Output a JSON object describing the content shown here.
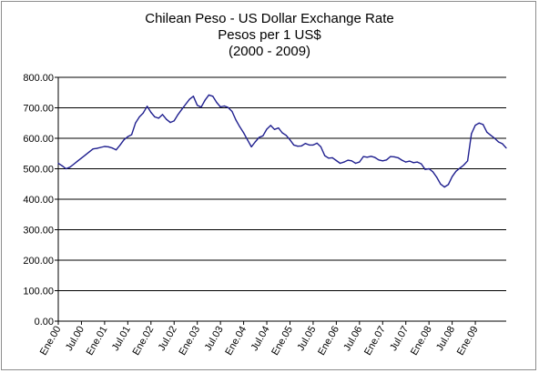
{
  "chart_data": {
    "type": "line",
    "title_lines": [
      "Chilean Peso - US Dollar Exchange Rate",
      "Pesos per 1  US$",
      "(2000 - 2009)"
    ],
    "ylim": [
      0,
      800
    ],
    "y_ticks": [
      "0.00",
      "100.00",
      "200.00",
      "300.00",
      "400.00",
      "500.00",
      "600.00",
      "700.00",
      "800.00"
    ],
    "x_tick_labels": [
      "Ene.00",
      "Jul.00",
      "Ene.01",
      "Jul.01",
      "Ene.02",
      "Jul.02",
      "Ene.03",
      "Jul.03",
      "Ene.04",
      "Jul.04",
      "Ene.05",
      "Jul.05",
      "Ene.06",
      "Jul.06",
      "Ene.07",
      "Jul.07",
      "Ene.08",
      "Jul.08",
      "Ene.09"
    ],
    "grid": true,
    "legend": "none",
    "line_color": "#1f1f8f",
    "series": [
      {
        "values": [
          518,
          510,
          500,
          505,
          515,
          525,
          535,
          545,
          555,
          565,
          567,
          570,
          573,
          572,
          568,
          562,
          578,
          595,
          605,
          612,
          650,
          670,
          683,
          705,
          685,
          670,
          666,
          678,
          662,
          652,
          657,
          678,
          695,
          712,
          728,
          738,
          708,
          702,
          725,
          742,
          738,
          718,
          703,
          706,
          701,
          688,
          660,
          638,
          618,
          595,
          572,
          588,
          603,
          608,
          630,
          642,
          629,
          634,
          618,
          610,
          595,
          578,
          574,
          575,
          583,
          578,
          578,
          584,
          572,
          543,
          535,
          536,
          527,
          518,
          522,
          528,
          526,
          518,
          522,
          540,
          538,
          541,
          537,
          529,
          526,
          529,
          540,
          539,
          536,
          528,
          522,
          525,
          520,
          522,
          516,
          498,
          500,
          490,
          472,
          450,
          440,
          448,
          474,
          492,
          502,
          512,
          526,
          615,
          643,
          650,
          645,
          620,
          610,
          600,
          588,
          582,
          568
        ]
      }
    ]
  }
}
